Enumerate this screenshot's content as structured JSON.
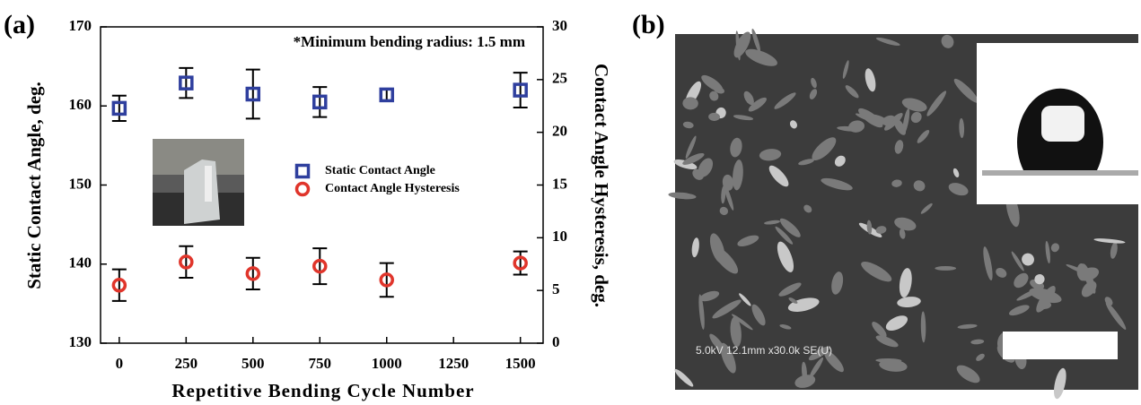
{
  "chart_data": {
    "type": "scatter",
    "annotation": "*Minimum bending radius: 1.5 mm",
    "xlabel": "Repetitive Bending Cycle Number",
    "ylabel": "Static Contact Angle, deg.",
    "y2label": "Contact Angle Hysteresis, deg.",
    "x": [
      0,
      250,
      500,
      750,
      1000,
      1500
    ],
    "series": [
      {
        "name": "Static Contact Angle",
        "color": "#2f3f9e",
        "marker": "square",
        "values": [
          159.7,
          162.9,
          161.5,
          160.5,
          161.4,
          162.0
        ],
        "errors": [
          1.6,
          1.9,
          3.1,
          1.9,
          0.7,
          2.2
        ]
      },
      {
        "name": "Contact Angle Hysteresis",
        "color": "#e0352b",
        "marker": "circle",
        "axis": "y2",
        "values": [
          5.5,
          7.7,
          6.6,
          7.3,
          6.0,
          7.6
        ],
        "errors": [
          1.5,
          1.5,
          1.5,
          1.7,
          1.6,
          1.1
        ]
      }
    ],
    "xlim": [
      -70,
      1585
    ],
    "xticks": [
      0,
      250,
      500,
      750,
      1000,
      1250,
      1500
    ],
    "ylim": [
      130,
      170
    ],
    "yticks": [
      130,
      140,
      150,
      160,
      170
    ],
    "y2lim": [
      0,
      30
    ],
    "y2ticks": [
      0,
      5,
      10,
      15,
      20,
      25,
      30
    ]
  },
  "panels": [
    {
      "label": "(a)"
    },
    {
      "label": "(b)",
      "image_caption": "5.0kV 12.1mm x30.0k SE(U)"
    }
  ]
}
